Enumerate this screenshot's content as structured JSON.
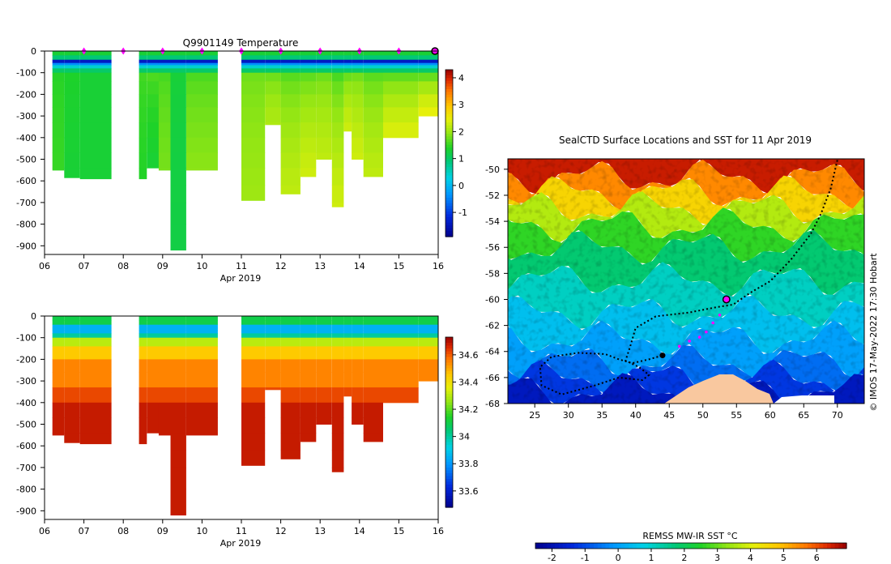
{
  "chart_data": [
    {
      "type": "heatmap",
      "title": "Q9901149  Temperature",
      "variable": "temperature",
      "xlabel": "Apr 2019",
      "x_ticks": [
        "06",
        "07",
        "08",
        "09",
        "10",
        "11",
        "12",
        "13",
        "14",
        "15",
        "16"
      ],
      "y_ticks": [
        "0",
        "-100",
        "-200",
        "-300",
        "-400",
        "-500",
        "-600",
        "-700",
        "-800",
        "-900"
      ],
      "ylim": [
        -940,
        0
      ],
      "colorbar": {
        "range": [
          -1.9,
          4.3
        ],
        "ticks": [
          "-1",
          "0",
          "1",
          "2",
          "3",
          "4"
        ]
      },
      "profiles": [
        {
          "day": 6.2,
          "depth": 550,
          "surface": 1.4,
          "deep": 1.5
        },
        {
          "day": 6.5,
          "depth": 585,
          "surface": 1.4,
          "deep": 1.3
        },
        {
          "day": 6.9,
          "depth": 590,
          "surface": 1.3,
          "deep": 1.3
        },
        {
          "day": 8.4,
          "depth": 590,
          "surface": 1.6,
          "deep": 1.4
        },
        {
          "day": 8.6,
          "depth": 540,
          "surface": 1.7,
          "deep": 1.3
        },
        {
          "day": 8.9,
          "depth": 550,
          "surface": 1.5,
          "deep": 1.8
        },
        {
          "day": 9.2,
          "depth": 920,
          "surface": 1.3,
          "deep": 1.2
        },
        {
          "day": 9.6,
          "depth": 550,
          "surface": 1.5,
          "deep": 1.9
        },
        {
          "day": 11.0,
          "depth": 690,
          "surface": 1.7,
          "deep": 2.0
        },
        {
          "day": 11.6,
          "depth": 340,
          "surface": 1.6,
          "deep": 2.1
        },
        {
          "day": 12.0,
          "depth": 660,
          "surface": 1.5,
          "deep": 2.2
        },
        {
          "day": 12.5,
          "depth": 580,
          "surface": 1.5,
          "deep": 2.3
        },
        {
          "day": 12.9,
          "depth": 500,
          "surface": 1.6,
          "deep": 2.2
        },
        {
          "day": 13.3,
          "depth": 720,
          "surface": 1.4,
          "deep": 2.3
        },
        {
          "day": 13.6,
          "depth": 370,
          "surface": 1.5,
          "deep": 2.3
        },
        {
          "day": 13.8,
          "depth": 500,
          "surface": 1.6,
          "deep": 2.3
        },
        {
          "day": 14.1,
          "depth": 580,
          "surface": 1.5,
          "deep": 2.2
        },
        {
          "day": 14.6,
          "depth": 400,
          "surface": 1.4,
          "deep": 2.4
        },
        {
          "day": 15.5,
          "depth": 300,
          "surface": 1.3,
          "deep": 2.5
        }
      ],
      "surface_markers": [
        7,
        8,
        9,
        10,
        11,
        12,
        13,
        14,
        15,
        16
      ]
    },
    {
      "type": "heatmap",
      "title": "",
      "variable": "salinity",
      "xlabel": "Apr 2019",
      "x_ticks": [
        "06",
        "07",
        "08",
        "09",
        "10",
        "11",
        "12",
        "13",
        "14",
        "15",
        "16"
      ],
      "y_ticks": [
        "0",
        "-100",
        "-200",
        "-300",
        "-400",
        "-500",
        "-600",
        "-700",
        "-800",
        "-900"
      ],
      "ylim": [
        -940,
        0
      ],
      "colorbar": {
        "range": [
          33.48,
          34.73
        ],
        "ticks": [
          "33.6",
          "33.8",
          "34",
          "34.2",
          "34.4",
          "34.6"
        ]
      }
    },
    {
      "type": "heatmap",
      "title": "SealCTD Surface Locations and SST for 11 Apr 2019",
      "x_ticks": [
        "25",
        "30",
        "35",
        "40",
        "45",
        "50",
        "55",
        "60",
        "65",
        "70"
      ],
      "y_ticks": [
        "-50",
        "-52",
        "-54",
        "-56",
        "-58",
        "-60",
        "-62",
        "-64",
        "-66",
        "-68"
      ],
      "xlim": [
        21,
        74
      ],
      "ylim": [
        -68,
        -49.2
      ],
      "colorbar": {
        "label": "REMSS MW-IR SST °C",
        "range": [
          -2.5,
          6.9
        ],
        "ticks": [
          "-2",
          "-1",
          "0",
          "1",
          "2",
          "3",
          "4",
          "5",
          "6"
        ]
      },
      "current_position": {
        "lon": 53.5,
        "lat": -60.0
      },
      "recent_positions": [
        {
          "lon": 52.5,
          "lat": -61.2
        },
        {
          "lon": 51.5,
          "lat": -61.8
        },
        {
          "lon": 50.5,
          "lat": -62.5
        },
        {
          "lon": 49.5,
          "lat": -62.9
        },
        {
          "lon": 48.0,
          "lat": -63.2
        },
        {
          "lon": 46.5,
          "lat": -63.6
        }
      ],
      "start_position": {
        "lon": 44.0,
        "lat": -64.3
      },
      "credit": "© IMOS 17-May-2022 17:30 Hobart"
    }
  ]
}
